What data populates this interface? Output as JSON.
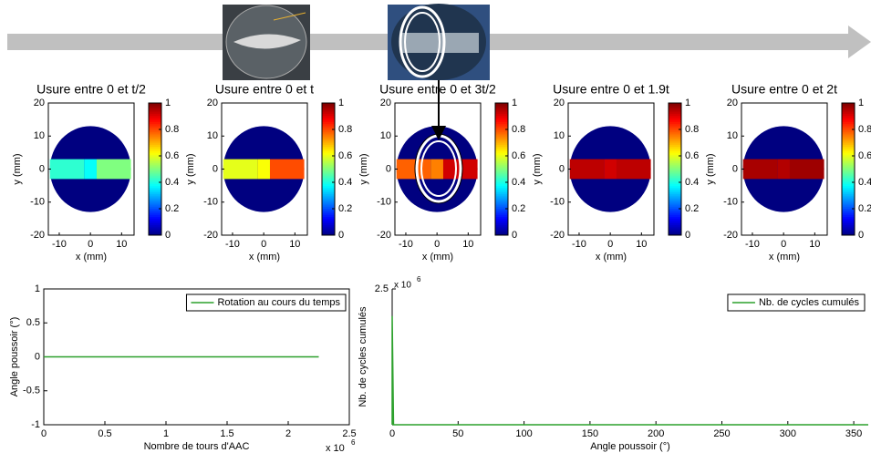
{
  "chart_data": [
    {
      "type": "heatmap",
      "title": "Usure entre 0 et t/2",
      "xlabel": "x (mm)",
      "ylabel": "y (mm)",
      "xlim": [
        -13.5,
        14
      ],
      "ylim": [
        -20,
        20
      ],
      "xticks": [
        -10,
        0,
        10
      ],
      "yticks": [
        -20,
        -10,
        0,
        10,
        20
      ],
      "colormap": "jet",
      "clim": [
        0,
        1
      ],
      "colorbar_ticks": [
        0,
        0.2,
        0.4,
        0.6,
        0.8,
        1
      ],
      "background": 0,
      "radius": 13,
      "x_edges": [
        -13,
        -2,
        2,
        13
      ],
      "y_edges": [
        -3,
        3
      ],
      "values": [
        0.42,
        0.38,
        0.5
      ]
    },
    {
      "type": "heatmap",
      "title": "Usure entre 0 et t",
      "xlabel": "x (mm)",
      "ylabel": "y (mm)",
      "xlim": [
        -13.5,
        14
      ],
      "ylim": [
        -20,
        20
      ],
      "xticks": [
        -10,
        0,
        10
      ],
      "yticks": [
        -20,
        -10,
        0,
        10,
        20
      ],
      "colormap": "jet",
      "clim": [
        0,
        1
      ],
      "colorbar_ticks": [
        0,
        0.2,
        0.4,
        0.6,
        0.8,
        1
      ],
      "background": 0,
      "radius": 13,
      "x_edges": [
        -13,
        -2,
        2,
        13
      ],
      "y_edges": [
        -3,
        3
      ],
      "values": [
        0.6,
        0.62,
        0.8
      ]
    },
    {
      "type": "heatmap",
      "title": "Usure entre 0 et 3t/2",
      "xlabel": "x (mm)",
      "ylabel": "y (mm)",
      "xlim": [
        -13.5,
        14
      ],
      "ylim": [
        -20,
        20
      ],
      "xticks": [
        -10,
        0,
        10
      ],
      "yticks": [
        -20,
        -10,
        0,
        10,
        20
      ],
      "colormap": "jet",
      "clim": [
        0,
        1
      ],
      "colorbar_ticks": [
        0,
        0.2,
        0.4,
        0.6,
        0.8,
        1
      ],
      "background": 0,
      "radius": 13,
      "x_edges": [
        -13,
        -2,
        2,
        13
      ],
      "y_edges": [
        -3,
        3
      ],
      "values": [
        0.78,
        0.75,
        0.92
      ]
    },
    {
      "type": "heatmap",
      "title": "Usure entre 0 et 1.9t",
      "xlabel": "x (mm)",
      "ylabel": "y (mm)",
      "xlim": [
        -13.5,
        14
      ],
      "ylim": [
        -20,
        20
      ],
      "xticks": [
        -10,
        0,
        10
      ],
      "yticks": [
        -20,
        -10,
        0,
        10,
        20
      ],
      "colormap": "jet",
      "clim": [
        0,
        1
      ],
      "colorbar_ticks": [
        0,
        0.2,
        0.4,
        0.6,
        0.8,
        1
      ],
      "background": 0,
      "radius": 13,
      "x_edges": [
        -13,
        -2,
        2,
        13
      ],
      "y_edges": [
        -3,
        3
      ],
      "values": [
        0.94,
        0.92,
        0.94
      ]
    },
    {
      "type": "heatmap",
      "title": "Usure entre 0 et 2t",
      "xlabel": "x (mm)",
      "ylabel": "y (mm)",
      "xlim": [
        -13.5,
        14
      ],
      "ylim": [
        -20,
        20
      ],
      "xticks": [
        -10,
        0,
        10
      ],
      "yticks": [
        -20,
        -10,
        0,
        10,
        20
      ],
      "colormap": "jet",
      "clim": [
        0,
        1
      ],
      "colorbar_ticks": [
        0,
        0.2,
        0.4,
        0.6,
        0.8,
        1
      ],
      "background": 0,
      "radius": 13,
      "x_edges": [
        -13,
        -2,
        2,
        13
      ],
      "y_edges": [
        -3,
        3
      ],
      "values": [
        0.96,
        0.95,
        0.97
      ]
    },
    {
      "type": "line",
      "xlabel": "Nombre de tours d'AAC",
      "ylabel": "Angle poussoir (°)",
      "xlim": [
        0,
        2.5
      ],
      "ylim": [
        -1,
        1
      ],
      "xticks": [
        0,
        0.5,
        1,
        1.5,
        2,
        2.5
      ],
      "yticks": [
        -1,
        -0.5,
        0,
        0.5,
        1
      ],
      "x_exponent_base": "x 10",
      "x_exponent": "6",
      "legend": "upper right",
      "series": [
        {
          "name": "Rotation au cours du temps",
          "color": "#2ca02c",
          "x": [
            0,
            2.25
          ],
          "values": [
            0,
            0
          ]
        }
      ]
    },
    {
      "type": "line",
      "xlabel": "Angle poussoir (°)",
      "ylabel": "Nb. de cycles cumulés",
      "xlim": [
        0,
        361
      ],
      "ylim": [
        0,
        2.5
      ],
      "xticks": [
        0,
        50,
        100,
        150,
        200,
        250,
        300,
        350
      ],
      "yticks": [
        2.5
      ],
      "y_exponent_base": "x 10",
      "y_exponent": "6",
      "legend": "upper right",
      "series": [
        {
          "name": "Nb. de cycles cumulés",
          "color": "#2ca02c",
          "x": [
            0,
            0,
            1,
            361
          ],
          "values": [
            0,
            2,
            0,
            0
          ]
        }
      ]
    }
  ]
}
